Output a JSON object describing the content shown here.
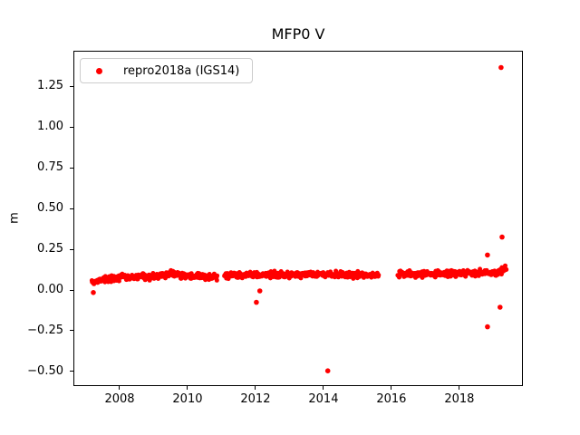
{
  "chart_data": {
    "type": "scatter",
    "title": "MFP0 V",
    "xlabel": "",
    "ylabel": "m",
    "grid": false,
    "point_color": "#ff0000",
    "axes_color": "#000000",
    "legend": {
      "label": "repro2018a (IGS14)",
      "marker_color": "#ff0000",
      "position": "upper left",
      "border_color": "#cccccc"
    },
    "xlim": [
      2006.64,
      2019.87
    ],
    "ylim": [
      -0.589,
      1.467
    ],
    "xticks": {
      "values": [
        2008,
        2010,
        2012,
        2014,
        2016,
        2018
      ],
      "labels": [
        "2008",
        "2010",
        "2012",
        "2014",
        "2016",
        "2018"
      ]
    },
    "yticks": {
      "values": [
        -0.5,
        -0.25,
        0.0,
        0.25,
        0.5,
        0.75,
        1.0,
        1.25
      ],
      "labels": [
        "−0.50",
        "−0.25",
        "0.00",
        "0.25",
        "0.50",
        "0.75",
        "1.00",
        "1.25"
      ]
    },
    "series": [
      {
        "name": "repro2018a (IGS14)",
        "band_segments": [
          {
            "x_start": 2007.15,
            "x_end": 2010.85,
            "mean_profile": [
              [
                2007.15,
                0.055
              ],
              [
                2007.8,
                0.08
              ],
              [
                2008.5,
                0.085
              ],
              [
                2009.0,
                0.09
              ],
              [
                2009.5,
                0.105
              ],
              [
                2009.9,
                0.09
              ],
              [
                2010.85,
                0.085
              ]
            ],
            "scatter_sigma": 0.009
          },
          {
            "x_start": 2011.05,
            "x_end": 2015.6,
            "mean_profile": [
              [
                2011.05,
                0.095
              ],
              [
                2012.5,
                0.1
              ],
              [
                2013.5,
                0.1
              ],
              [
                2014.5,
                0.1
              ],
              [
                2015.6,
                0.095
              ]
            ],
            "scatter_sigma": 0.009
          },
          {
            "x_start": 2016.15,
            "x_end": 2019.36,
            "mean_profile": [
              [
                2016.15,
                0.1
              ],
              [
                2017.5,
                0.105
              ],
              [
                2018.5,
                0.108
              ],
              [
                2019.0,
                0.115
              ],
              [
                2019.2,
                0.12
              ],
              [
                2019.36,
                0.14
              ]
            ],
            "scatter_sigma": 0.01
          }
        ],
        "outliers": [
          [
            2007.2,
            -0.01
          ],
          [
            2012.0,
            -0.07
          ],
          [
            2012.1,
            0.0
          ],
          [
            2014.1,
            -0.49
          ],
          [
            2018.8,
            -0.22
          ],
          [
            2018.8,
            0.22
          ],
          [
            2019.17,
            -0.1
          ],
          [
            2019.2,
            1.37
          ],
          [
            2019.23,
            0.33
          ]
        ]
      }
    ]
  }
}
